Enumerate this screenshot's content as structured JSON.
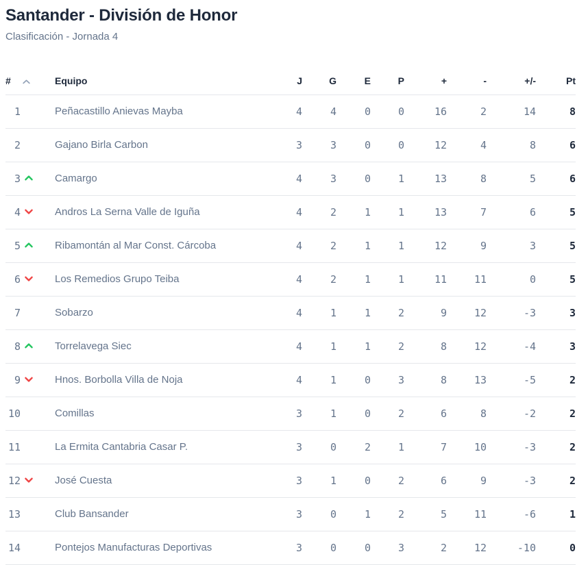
{
  "page": {
    "title": "Santander - División de Honor",
    "subtitle": "Clasificación - Jornada 4"
  },
  "table": {
    "headers": {
      "rank": "#",
      "team": "Equipo",
      "played": "J",
      "won": "G",
      "drawn": "E",
      "lost": "P",
      "goals_for": "+",
      "goals_against": "-",
      "goal_diff": "+/-",
      "points": "Pt"
    },
    "sort_icon": "chevron-up-icon",
    "rows": [
      {
        "rank": "1",
        "trend": "none",
        "team": "Peñacastillo Anievas Mayba",
        "j": "4",
        "g": "4",
        "e": "0",
        "p": "0",
        "gf": "16",
        "ga": "2",
        "gd": "14",
        "pt": "8"
      },
      {
        "rank": "2",
        "trend": "none",
        "team": "Gajano Birla Carbon",
        "j": "3",
        "g": "3",
        "e": "0",
        "p": "0",
        "gf": "12",
        "ga": "4",
        "gd": "8",
        "pt": "6"
      },
      {
        "rank": "3",
        "trend": "up",
        "team": "Camargo",
        "j": "4",
        "g": "3",
        "e": "0",
        "p": "1",
        "gf": "13",
        "ga": "8",
        "gd": "5",
        "pt": "6"
      },
      {
        "rank": "4",
        "trend": "down",
        "team": "Andros La Serna Valle de Iguña",
        "j": "4",
        "g": "2",
        "e": "1",
        "p": "1",
        "gf": "13",
        "ga": "7",
        "gd": "6",
        "pt": "5"
      },
      {
        "rank": "5",
        "trend": "up",
        "team": "Ribamontán al Mar Const. Cárcoba",
        "j": "4",
        "g": "2",
        "e": "1",
        "p": "1",
        "gf": "12",
        "ga": "9",
        "gd": "3",
        "pt": "5"
      },
      {
        "rank": "6",
        "trend": "down",
        "team": "Los Remedios Grupo Teiba",
        "j": "4",
        "g": "2",
        "e": "1",
        "p": "1",
        "gf": "11",
        "ga": "11",
        "gd": "0",
        "pt": "5"
      },
      {
        "rank": "7",
        "trend": "none",
        "team": "Sobarzo",
        "j": "4",
        "g": "1",
        "e": "1",
        "p": "2",
        "gf": "9",
        "ga": "12",
        "gd": "-3",
        "pt": "3"
      },
      {
        "rank": "8",
        "trend": "up",
        "team": "Torrelavega Siec",
        "j": "4",
        "g": "1",
        "e": "1",
        "p": "2",
        "gf": "8",
        "ga": "12",
        "gd": "-4",
        "pt": "3"
      },
      {
        "rank": "9",
        "trend": "down",
        "team": "Hnos. Borbolla Villa de Noja",
        "j": "4",
        "g": "1",
        "e": "0",
        "p": "3",
        "gf": "8",
        "ga": "13",
        "gd": "-5",
        "pt": "2"
      },
      {
        "rank": "10",
        "trend": "none",
        "team": "Comillas",
        "j": "3",
        "g": "1",
        "e": "0",
        "p": "2",
        "gf": "6",
        "ga": "8",
        "gd": "-2",
        "pt": "2"
      },
      {
        "rank": "11",
        "trend": "none",
        "team": "La Ermita Cantabria Casar P.",
        "j": "3",
        "g": "0",
        "e": "2",
        "p": "1",
        "gf": "7",
        "ga": "10",
        "gd": "-3",
        "pt": "2"
      },
      {
        "rank": "12",
        "trend": "down",
        "team": "José Cuesta",
        "j": "3",
        "g": "1",
        "e": "0",
        "p": "2",
        "gf": "6",
        "ga": "9",
        "gd": "-3",
        "pt": "2"
      },
      {
        "rank": "13",
        "trend": "none",
        "team": "Club Bansander",
        "j": "3",
        "g": "0",
        "e": "1",
        "p": "2",
        "gf": "5",
        "ga": "11",
        "gd": "-6",
        "pt": "1"
      },
      {
        "rank": "14",
        "trend": "none",
        "team": "Pontejos Manufacturas Deportivas",
        "j": "3",
        "g": "0",
        "e": "0",
        "p": "3",
        "gf": "2",
        "ga": "12",
        "gd": "-10",
        "pt": "0"
      }
    ]
  },
  "colors": {
    "title_text": "#1e293b",
    "muted_text": "#64748b",
    "row_border": "#e5e7eb",
    "trend_up": "#22c55e",
    "trend_down": "#ef4444",
    "sort_icon": "#94a3b8"
  }
}
